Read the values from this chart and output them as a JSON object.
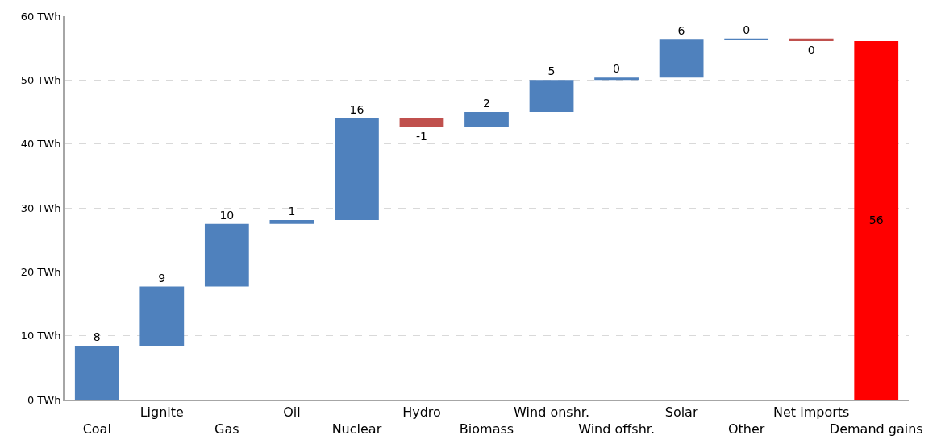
{
  "chart_data": {
    "type": "bar",
    "categories": [
      "Coal",
      "Lignite",
      "Gas",
      "Oil",
      "Nuclear",
      "Hydro",
      "Biomass",
      "Wind onshr.",
      "Wind offshr.",
      "Solar",
      "Other",
      "Net imports",
      "Demand gains"
    ],
    "values": [
      8.4,
      9.3,
      9.8,
      0.6,
      15.9,
      -1.4,
      2.4,
      5.0,
      0.4,
      5.9,
      0.2,
      -0.4,
      56.1
    ],
    "base": [
      0,
      8.4,
      17.7,
      27.5,
      28.1,
      44.0,
      42.6,
      45.0,
      50.0,
      50.4,
      56.3,
      56.5,
      0
    ],
    "colors": [
      "#4f81bd",
      "#4f81bd",
      "#4f81bd",
      "#4f81bd",
      "#4f81bd",
      "#c0504d",
      "#4f81bd",
      "#4f81bd",
      "#4f81bd",
      "#4f81bd",
      "#4f81bd",
      "#c0504d",
      "#ff0000"
    ],
    "value_labels": [
      "8",
      "9",
      "10",
      "1",
      "16",
      "-1",
      "2",
      "5",
      "0",
      "6",
      "0",
      "0",
      "56"
    ],
    "ylim": [
      0,
      60
    ],
    "yticks": [
      {
        "value": 0,
        "label": "0 TWh"
      },
      {
        "value": 10,
        "label": "10 TWh"
      },
      {
        "value": 20,
        "label": "20 TWh"
      },
      {
        "value": 30,
        "label": "30 TWh"
      },
      {
        "value": 40,
        "label": "40 TWh"
      },
      {
        "value": 50,
        "label": "50 TWh"
      },
      {
        "value": 60,
        "label": "60 TWh"
      }
    ],
    "grid": "y"
  }
}
